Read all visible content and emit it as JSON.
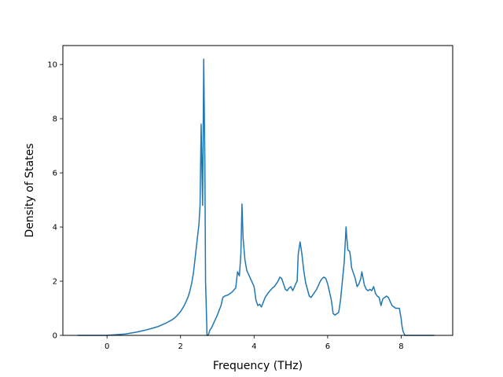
{
  "chart_data": {
    "type": "line",
    "title": "",
    "xlabel": "Frequency (THz)",
    "ylabel": "Density of States",
    "xlim": [
      -1.2,
      9.4
    ],
    "ylim": [
      0,
      10.7
    ],
    "xticks": [
      0,
      2,
      4,
      6,
      8
    ],
    "yticks": [
      0,
      2,
      4,
      6,
      8,
      10
    ],
    "grid": false,
    "legend": "none",
    "series": [
      {
        "color": "#1f77b4",
        "x": [
          -0.8,
          -0.5,
          0.0,
          0.5,
          0.8,
          1.0,
          1.2,
          1.4,
          1.6,
          1.8,
          1.9,
          2.0,
          2.1,
          2.2,
          2.25,
          2.3,
          2.35,
          2.4,
          2.45,
          2.5,
          2.53,
          2.56,
          2.58,
          2.6,
          2.63,
          2.66,
          2.68,
          2.72,
          2.75,
          2.8,
          2.85,
          2.9,
          3.0,
          3.1,
          3.15,
          3.2,
          3.3,
          3.4,
          3.5,
          3.55,
          3.6,
          3.64,
          3.67,
          3.7,
          3.75,
          3.8,
          3.9,
          4.0,
          4.05,
          4.1,
          4.15,
          4.2,
          4.3,
          4.4,
          4.5,
          4.55,
          4.6,
          4.65,
          4.7,
          4.75,
          4.8,
          4.85,
          4.9,
          4.95,
          5.0,
          5.05,
          5.1,
          5.13,
          5.17,
          5.2,
          5.25,
          5.3,
          5.35,
          5.4,
          5.45,
          5.5,
          5.55,
          5.6,
          5.7,
          5.75,
          5.8,
          5.85,
          5.9,
          5.95,
          6.0,
          6.05,
          6.1,
          6.15,
          6.2,
          6.25,
          6.3,
          6.35,
          6.4,
          6.45,
          6.5,
          6.52,
          6.55,
          6.6,
          6.63,
          6.65,
          6.7,
          6.75,
          6.8,
          6.85,
          6.9,
          6.93,
          6.95,
          7.0,
          7.05,
          7.1,
          7.15,
          7.2,
          7.25,
          7.3,
          7.35,
          7.4,
          7.45,
          7.5,
          7.55,
          7.6,
          7.65,
          7.7,
          7.75,
          7.8,
          7.85,
          7.9,
          7.95,
          8.0,
          8.02,
          8.05,
          8.1,
          8.15,
          8.2,
          8.5,
          8.9
        ],
        "y": [
          0,
          0,
          0,
          0.05,
          0.12,
          0.18,
          0.25,
          0.33,
          0.45,
          0.6,
          0.72,
          0.88,
          1.1,
          1.4,
          1.62,
          1.9,
          2.3,
          2.9,
          3.5,
          4.1,
          4.8,
          7.8,
          6.2,
          4.8,
          10.2,
          6.5,
          2.0,
          0.0,
          0.0,
          0.2,
          0.3,
          0.45,
          0.75,
          1.1,
          1.4,
          1.45,
          1.5,
          1.6,
          1.75,
          2.35,
          2.2,
          3.0,
          4.85,
          3.6,
          2.8,
          2.4,
          2.1,
          1.8,
          1.3,
          1.1,
          1.15,
          1.05,
          1.4,
          1.6,
          1.75,
          1.8,
          1.9,
          2.0,
          2.15,
          2.1,
          1.9,
          1.7,
          1.65,
          1.75,
          1.8,
          1.65,
          1.8,
          1.9,
          2.0,
          3.0,
          3.45,
          3.0,
          2.4,
          1.95,
          1.7,
          1.45,
          1.4,
          1.5,
          1.7,
          1.85,
          2.0,
          2.1,
          2.15,
          2.1,
          1.9,
          1.6,
          1.3,
          0.8,
          0.75,
          0.8,
          0.85,
          1.3,
          2.0,
          2.7,
          4.0,
          3.6,
          3.15,
          3.1,
          2.8,
          2.5,
          2.3,
          2.1,
          1.8,
          1.9,
          2.1,
          2.35,
          2.2,
          1.85,
          1.7,
          1.65,
          1.7,
          1.65,
          1.8,
          1.55,
          1.45,
          1.4,
          1.1,
          1.35,
          1.4,
          1.45,
          1.4,
          1.25,
          1.1,
          1.05,
          1.0,
          1.0,
          1.0,
          0.6,
          0.35,
          0.15,
          0.0,
          0.0,
          0.0,
          0.0,
          0.0
        ]
      }
    ]
  }
}
